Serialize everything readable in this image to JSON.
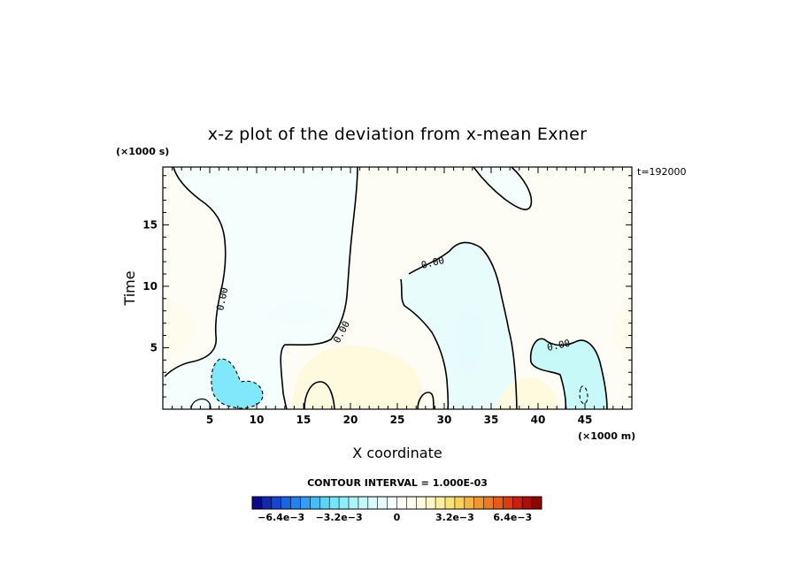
{
  "chart_data": {
    "type": "heatmap",
    "title": "x-z plot of the deviation from x-mean Exner",
    "xlabel": "X coordinate",
    "ylabel": "Time",
    "x_unit": "(×1000 m)",
    "y_unit": "(×1000 s)",
    "time_stamp": "t=192000",
    "xlim": [
      0,
      50
    ],
    "ylim": [
      0,
      19.7
    ],
    "x_ticks": [
      5,
      10,
      15,
      20,
      25,
      30,
      35,
      40,
      45
    ],
    "y_ticks": [
      5,
      10,
      15
    ],
    "contour_interval_text": "CONTOUR INTERVAL = 1.000E-03",
    "contour_label": "0.00",
    "colorbar": {
      "min": -0.008,
      "max": 0.008,
      "tick_labels": [
        "−6.4e−3",
        "−3.2e−3",
        "0",
        "3.2e−3",
        "6.4e−3"
      ],
      "tick_values": [
        -0.0064,
        -0.0032,
        0,
        0.0032,
        0.0064
      ],
      "colors": [
        "#0a0a8c",
        "#0f2ab0",
        "#1446d0",
        "#1a64e4",
        "#2482f0",
        "#30a0f6",
        "#44bcf8",
        "#5ad4fa",
        "#74e4fa",
        "#90eefa",
        "#aaf4fa",
        "#c2f8fa",
        "#d6fafa",
        "#e6fcfc",
        "#f2fefe",
        "#fdfdf6",
        "#fefcec",
        "#fefadc",
        "#fef6c4",
        "#fcee9e",
        "#fae27a",
        "#f8d05a",
        "#f4b640",
        "#f0982c",
        "#ec7a20",
        "#e45c18",
        "#d83c10",
        "#c8200c",
        "#b00c08",
        "#900404"
      ]
    },
    "regions": [
      {
        "label": "negative",
        "value": -0.0005,
        "center": [
          9.5,
          11
        ],
        "extent": "x 1-14, t 0-19.7"
      },
      {
        "label": "negative",
        "value": -0.0035,
        "center": [
          7.2,
          2.0
        ],
        "extent": "x 5-10, t 0.5-4"
      },
      {
        "label": "negative",
        "value": -0.0006,
        "center": [
          31.5,
          7
        ],
        "extent": "x 25-37, t 0-13.5"
      },
      {
        "label": "negative",
        "value": -0.002,
        "center": [
          45,
          1.5
        ],
        "extent": "x 43-48, t 0-4"
      },
      {
        "label": "negative",
        "value": -0.0005,
        "center": [
          37,
          18.3
        ],
        "extent": "x 33-39, t 16.5-19.7"
      },
      {
        "label": "positive",
        "value": 0.0004,
        "center": [
          22,
          12
        ],
        "extent": "x 20-25 and 37-50"
      },
      {
        "label": "positive",
        "value": 0.0015,
        "center": [
          20,
          3
        ],
        "extent": "x 15-27, t 0-6"
      },
      {
        "label": "positive",
        "value": 0.0015,
        "center": [
          39,
          1.2
        ],
        "extent": "x 35-43, t 0-3"
      },
      {
        "label": "positive",
        "value": 0.001,
        "center": [
          2,
          7
        ],
        "extent": "x 0-4, t 5-9"
      },
      {
        "label": "positive",
        "value": 0.001,
        "center": [
          49,
          7
        ],
        "extent": "x 47-50, t 5-9"
      }
    ]
  }
}
